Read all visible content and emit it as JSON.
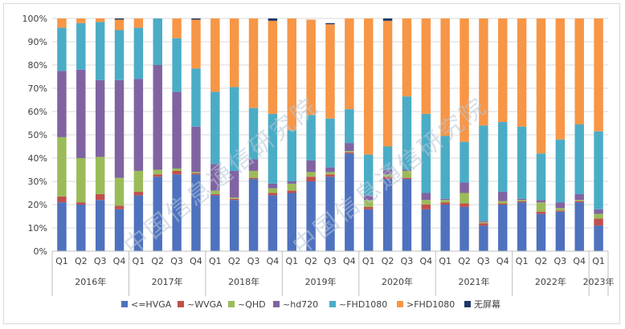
{
  "chart_data": {
    "type": "stacked-bar-100",
    "title": "",
    "xlabel": "",
    "ylabel": "",
    "ylim": [
      0,
      100
    ],
    "yticks": [
      "0%",
      "10%",
      "20%",
      "30%",
      "40%",
      "50%",
      "60%",
      "70%",
      "80%",
      "90%",
      "100%"
    ],
    "quarters": [
      "Q1",
      "Q2",
      "Q3",
      "Q4",
      "Q1",
      "Q2",
      "Q3",
      "Q4",
      "Q1",
      "Q2",
      "Q3",
      "Q4",
      "Q1",
      "Q2",
      "Q3",
      "Q4",
      "Q1",
      "Q2",
      "Q3",
      "Q4",
      "Q1",
      "Q2",
      "Q3",
      "Q4",
      "Q1",
      "Q2",
      "Q3",
      "Q4",
      "Q1"
    ],
    "years": [
      {
        "label": "2016年",
        "count": 4
      },
      {
        "label": "2017年",
        "count": 4
      },
      {
        "label": "2018年",
        "count": 4
      },
      {
        "label": "2019年",
        "count": 4
      },
      {
        "label": "2020年",
        "count": 4
      },
      {
        "label": "2021年",
        "count": 4
      },
      {
        "label": "2022年",
        "count": 4
      },
      {
        "label": "2023年",
        "count": 1
      }
    ],
    "series": [
      {
        "name": "<=HVGA",
        "color": "#4f72be",
        "values": [
          21,
          20,
          22,
          18,
          24,
          32,
          33,
          33,
          24,
          22,
          31,
          24,
          25,
          30,
          32,
          42,
          18,
          31,
          31,
          18,
          20,
          19,
          11,
          20,
          21,
          16,
          17,
          21,
          11
        ]
      },
      {
        "name": "~WVGA",
        "color": "#c0504d",
        "values": [
          2.5,
          1,
          2.5,
          1.5,
          1.5,
          1,
          1.5,
          0.5,
          0.5,
          0.5,
          0.5,
          1,
          1,
          2,
          1,
          0.5,
          1,
          1,
          0.5,
          2,
          1,
          1.5,
          1,
          0.5,
          0.5,
          1,
          0.5,
          0.5,
          3
        ]
      },
      {
        "name": "~QHD",
        "color": "#9bbb59",
        "values": [
          25.5,
          19,
          16,
          12,
          9,
          2,
          1,
          0.5,
          1.5,
          0.5,
          3,
          2,
          3,
          2,
          1,
          0.5,
          3,
          1,
          3,
          2,
          1,
          4.5,
          0.5,
          1,
          0.5,
          4,
          1,
          0.5,
          2
        ]
      },
      {
        "name": "~hd720",
        "color": "#8064a2",
        "values": [
          28.5,
          38,
          33,
          42,
          39.5,
          45,
          33,
          19.5,
          11.5,
          11.5,
          5,
          2,
          1,
          5,
          2,
          3.5,
          2,
          2,
          0.5,
          3,
          0.5,
          4.5,
          0.5,
          4,
          0.5,
          1,
          2.5,
          2.5,
          2
        ]
      },
      {
        "name": "~FHD1080",
        "color": "#4bacc6",
        "values": [
          18.5,
          20,
          25,
          21.5,
          22,
          20,
          23,
          25,
          31,
          36,
          22,
          30,
          22,
          19.5,
          21,
          14.5,
          17.5,
          10,
          31.5,
          34,
          27,
          17.5,
          41,
          30,
          31,
          20,
          27,
          30,
          33.5
        ]
      },
      {
        "name": ">FHD1080",
        "color": "#f79646",
        "values": [
          4,
          2,
          1.5,
          4.5,
          4,
          0,
          8.5,
          21,
          31.5,
          29.5,
          38.5,
          40,
          48,
          41,
          40.5,
          39,
          58.5,
          54,
          33.5,
          41,
          50.5,
          53,
          46,
          44.5,
          46.5,
          58,
          52,
          45.5,
          48.5
        ]
      },
      {
        "name": "无屏幕",
        "color": "#1f3864",
        "values": [
          0,
          0,
          0,
          0.5,
          0,
          0,
          0,
          0.5,
          0,
          0,
          0,
          1,
          0,
          0,
          0.5,
          0,
          0,
          1,
          0,
          0,
          0,
          0,
          0,
          0,
          0,
          0,
          0,
          0,
          0
        ]
      }
    ]
  },
  "watermark": "中国信息通信研究院"
}
